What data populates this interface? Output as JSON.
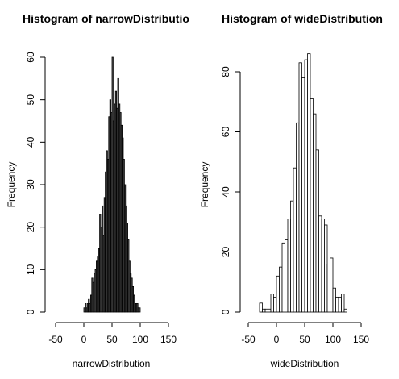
{
  "chart_data": [
    {
      "type": "bar",
      "title": "Histogram of narrowDistributio",
      "xlabel": "narrowDistribution",
      "ylabel": "Frequency",
      "xlim": [
        -50,
        150
      ],
      "ylim": [
        0,
        60
      ],
      "xticks": [
        -50,
        0,
        50,
        100,
        150
      ],
      "yticks": [
        0,
        10,
        20,
        30,
        40,
        50,
        60
      ],
      "bin_width": 2,
      "bar_fill": "#555555",
      "x": [
        0,
        2,
        4,
        6,
        8,
        10,
        12,
        14,
        16,
        18,
        20,
        22,
        24,
        26,
        28,
        30,
        32,
        34,
        36,
        38,
        40,
        42,
        44,
        46,
        48,
        50,
        52,
        54,
        56,
        58,
        60,
        62,
        64,
        66,
        68,
        70,
        72,
        74,
        76,
        78,
        80,
        82,
        84,
        86,
        88,
        90,
        92,
        94,
        96,
        98
      ],
      "values": [
        1,
        2,
        1,
        2,
        3,
        2,
        4,
        8,
        7,
        9,
        10,
        12,
        13,
        15,
        23,
        20,
        25,
        18,
        27,
        33,
        38,
        36,
        46,
        50,
        47,
        60,
        45,
        49,
        52,
        48,
        55,
        49,
        47,
        44,
        41,
        36,
        30,
        25,
        21,
        17,
        12,
        9,
        8,
        6,
        4,
        2,
        2,
        2,
        1,
        1
      ]
    },
    {
      "type": "bar",
      "title": "Histogram of wideDistribution",
      "xlabel": "wideDistribution",
      "ylabel": "Frequency",
      "xlim": [
        -50,
        150
      ],
      "ylim": [
        0,
        86
      ],
      "xticks": [
        -50,
        0,
        50,
        100,
        150
      ],
      "yticks": [
        0,
        20,
        40,
        60,
        80
      ],
      "bin_width": 5,
      "bar_fill": "#ffffff",
      "x": [
        -30,
        -25,
        -20,
        -15,
        -10,
        -5,
        0,
        5,
        10,
        15,
        20,
        25,
        30,
        35,
        40,
        45,
        50,
        55,
        60,
        65,
        70,
        75,
        80,
        85,
        90,
        95,
        100,
        105,
        110,
        115,
        120
      ],
      "values": [
        3,
        1,
        1,
        1,
        6,
        5,
        12,
        15,
        23,
        24,
        31,
        37,
        48,
        63,
        83,
        78,
        84,
        86,
        71,
        66,
        54,
        32,
        31,
        29,
        16,
        18,
        8,
        5,
        5,
        6,
        1
      ]
    }
  ]
}
